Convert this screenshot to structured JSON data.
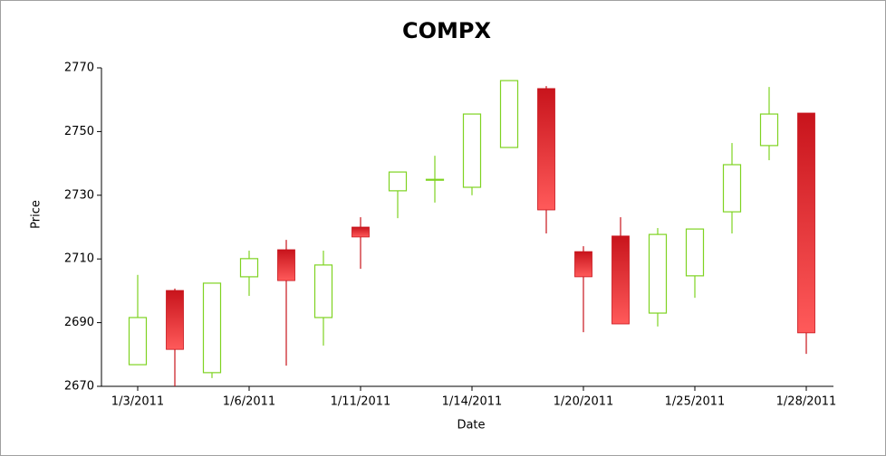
{
  "chart_data": {
    "type": "candlestick",
    "title": "COMPX",
    "x_label": "Date",
    "y_label": "Price",
    "categories": [
      "1/3/2011",
      null,
      null,
      "1/6/2011",
      null,
      null,
      "1/11/2011",
      null,
      null,
      "1/14/2011",
      null,
      null,
      "1/20/2011",
      null,
      null,
      "1/25/2011",
      null,
      null,
      "1/28/2011"
    ],
    "open": [
      2676.8,
      2700.1,
      2674.3,
      2704.4,
      2712.9,
      2691.6,
      2720.0,
      2731.4,
      2734.8,
      2732.5,
      2745.0,
      2763.5,
      2712.3,
      2717.2,
      2693.0,
      2704.7,
      2724.8,
      2745.6,
      2755.8
    ],
    "high": [
      2705.0,
      2700.7,
      2702.4,
      2712.6,
      2716.0,
      2712.6,
      2723.1,
      2737.3,
      2742.4,
      2755.5,
      2766.0,
      2764.3,
      2714.0,
      2723.1,
      2719.7,
      2719.4,
      2746.4,
      2764.0,
      2755.8
    ],
    "low": [
      2676.8,
      2670.0,
      2672.6,
      2698.4,
      2676.5,
      2682.8,
      2706.9,
      2722.8,
      2727.7,
      2730.0,
      2745.0,
      2718.0,
      2687.0,
      2689.6,
      2688.8,
      2697.8,
      2718.0,
      2741.0,
      2680.2
    ],
    "close": [
      2691.6,
      2681.6,
      2702.4,
      2710.1,
      2703.2,
      2708.1,
      2716.9,
      2737.3,
      2735.0,
      2755.5,
      2766.0,
      2725.4,
      2704.4,
      2689.6,
      2717.7,
      2719.4,
      2739.6,
      2755.5,
      2686.8
    ],
    "up_color": "#7ed321",
    "down_color": "#c8141c",
    "ylim": [
      2670,
      2770
    ],
    "yticks": [
      2670,
      2690,
      2710,
      2730,
      2750,
      2770
    ]
  }
}
